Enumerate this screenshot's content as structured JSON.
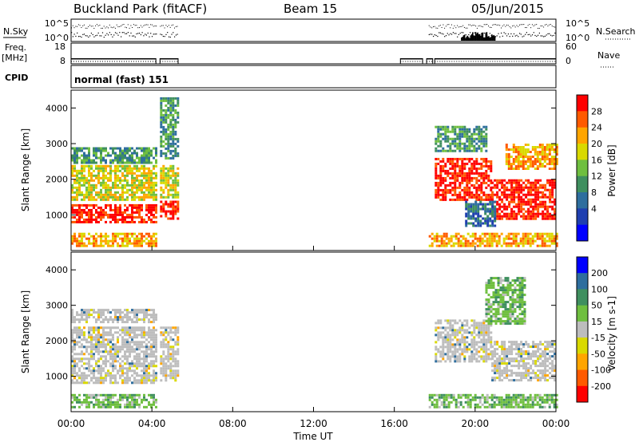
{
  "header": {
    "station": "Buckland Park (fitACF)",
    "beam": "Beam 15",
    "date": "05/Jun/2015"
  },
  "strips": {
    "nsky_label": "N.Sky",
    "nsky_ticks": [
      "10^5",
      "10^0"
    ],
    "nsearch_label": "N.Search",
    "nsearch_ticks": [
      "10^5",
      "10^0"
    ],
    "freq_label": "Freq.",
    "freq_unit": "[MHz]",
    "freq_ticks": [
      "18",
      "8"
    ],
    "nave_label": "Nave",
    "nave_ticks": [
      "60",
      "0"
    ],
    "cpid_label": "CPID",
    "cpid_text": "normal (fast) 151"
  },
  "chart_data": [
    {
      "type": "heatmap",
      "panel": "power",
      "ylabel": "Slant Range [km]",
      "y_ticks": [
        "1000",
        "2000",
        "3000",
        "4000"
      ],
      "ylim": [
        0,
        4500
      ],
      "colorbar_label": "Power [dB]",
      "colorbar_ticks": [
        "28",
        "24",
        "20",
        "16",
        "12",
        "8",
        "4"
      ],
      "colors": [
        "#0000ff",
        "#1f3fb0",
        "#2e6e9e",
        "#3f8f5f",
        "#6fbf3f",
        "#d9d900",
        "#ffa500",
        "#ff5a00",
        "#ff0000"
      ],
      "bands": [
        {
          "t0": 0.0,
          "t1": 4.2,
          "r0": 800,
          "r1": 1300,
          "level": 28
        },
        {
          "t0": 0.0,
          "t1": 4.2,
          "r0": 1400,
          "r1": 2400,
          "level": 17
        },
        {
          "t0": 0.0,
          "t1": 4.2,
          "r0": 2450,
          "r1": 2900,
          "level": 9
        },
        {
          "t0": 0.0,
          "t1": 4.2,
          "r0": 100,
          "r1": 500,
          "level": 20
        },
        {
          "t0": 4.4,
          "t1": 5.3,
          "r0": 900,
          "r1": 1400,
          "level": 27
        },
        {
          "t0": 4.4,
          "t1": 5.3,
          "r0": 1500,
          "r1": 2400,
          "level": 18
        },
        {
          "t0": 4.4,
          "t1": 5.3,
          "r0": 2600,
          "r1": 4300,
          "level": 12
        },
        {
          "t0": 18.0,
          "t1": 20.8,
          "r0": 1400,
          "r1": 2600,
          "level": 28
        },
        {
          "t0": 18.0,
          "t1": 20.6,
          "r0": 2800,
          "r1": 3500,
          "level": 10
        },
        {
          "t0": 20.8,
          "t1": 24.0,
          "r0": 900,
          "r1": 2000,
          "level": 27
        },
        {
          "t0": 21.5,
          "t1": 24.0,
          "r0": 2300,
          "r1": 3000,
          "level": 22
        },
        {
          "t0": 19.5,
          "t1": 21.0,
          "r0": 700,
          "r1": 1400,
          "level": 8
        },
        {
          "t0": 17.7,
          "t1": 24.0,
          "r0": 100,
          "r1": 500,
          "level": 20
        }
      ]
    },
    {
      "type": "heatmap",
      "panel": "velocity",
      "ylabel": "Slant Range [km]",
      "y_ticks": [
        "1000",
        "2000",
        "3000",
        "4000"
      ],
      "ylim": [
        0,
        4500
      ],
      "colorbar_label": "Velocity [m s-1]",
      "colorbar_ticks": [
        "200",
        "100",
        "50",
        "15",
        "-15",
        "-50",
        "-100",
        "-200"
      ],
      "colors": [
        "#0000ff",
        "#2e6e9e",
        "#3f8f5f",
        "#6fbf3f",
        "#bdbdbd",
        "#d9d900",
        "#ffa500",
        "#ff5a00",
        "#ff0000"
      ],
      "bands": [
        {
          "t0": 0.0,
          "t1": 4.2,
          "r0": 800,
          "r1": 2400,
          "level": 0
        },
        {
          "t0": 0.0,
          "t1": 4.2,
          "r0": 2500,
          "r1": 2900,
          "level": 0
        },
        {
          "t0": 0.0,
          "t1": 4.2,
          "r0": 100,
          "r1": 500,
          "level": 20
        },
        {
          "t0": 4.4,
          "t1": 5.3,
          "r0": 900,
          "r1": 2400,
          "level": 0
        },
        {
          "t0": 18.0,
          "t1": 20.8,
          "r0": 1400,
          "r1": 2600,
          "level": 0
        },
        {
          "t0": 20.8,
          "t1": 24.0,
          "r0": 900,
          "r1": 2000,
          "level": 0
        },
        {
          "t0": 20.5,
          "t1": 22.5,
          "r0": 2500,
          "r1": 3800,
          "level": 30
        },
        {
          "t0": 17.7,
          "t1": 24.0,
          "r0": 100,
          "r1": 500,
          "level": 25
        }
      ]
    }
  ],
  "xaxis": {
    "label": "Time UT",
    "ticks": [
      "00:00",
      "04:00",
      "08:00",
      "12:00",
      "16:00",
      "20:00",
      "00:00"
    ],
    "xlim": [
      0,
      24
    ]
  }
}
